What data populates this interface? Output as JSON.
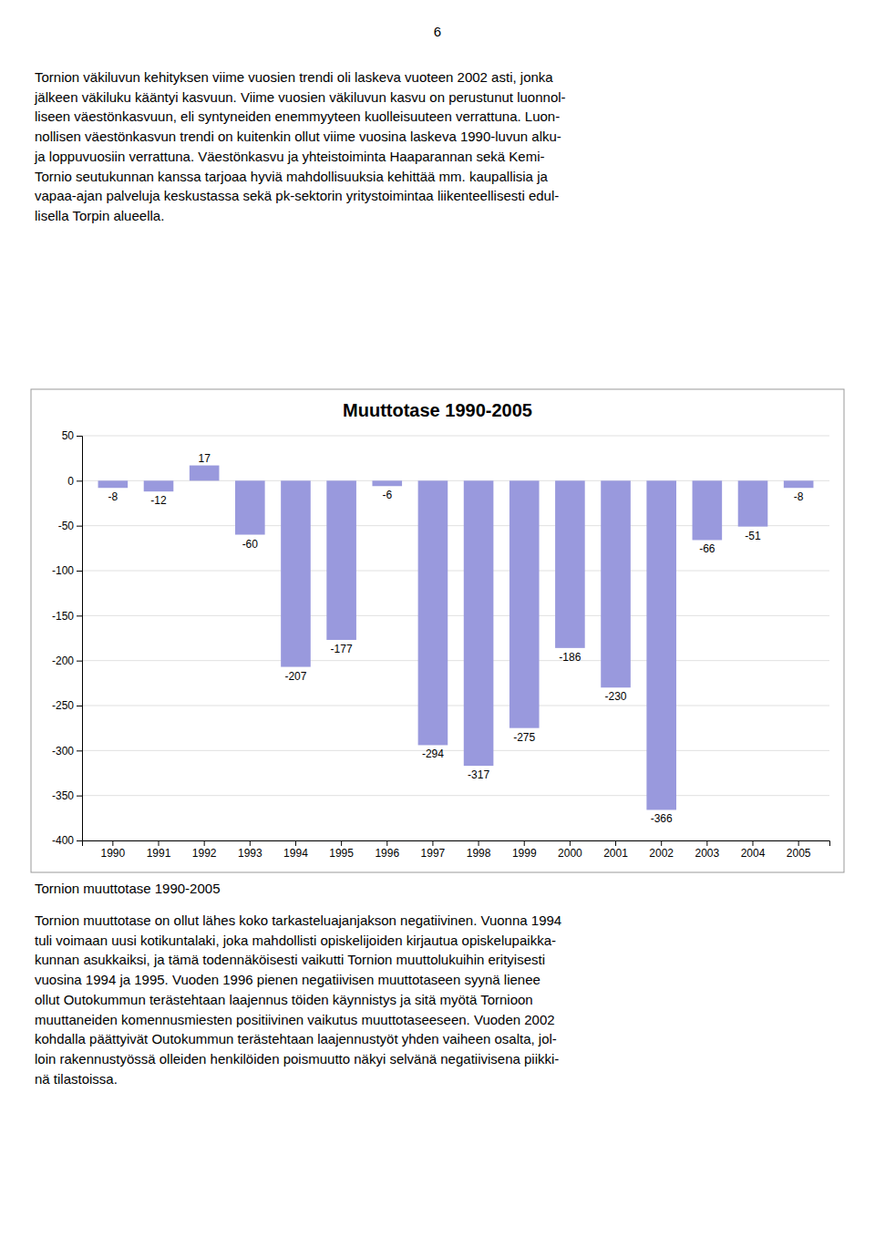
{
  "page_number": "6",
  "top_text": [
    "Tornion väkiluvun kehityksen viime vuosien trendi oli laskeva vuoteen 2002 asti, jonka",
    "jälkeen väkiluku kääntyi kasvuun. Viime vuosien väkiluvun kasvu on perustunut luonnol-",
    "liseen väestönkasvuun, eli syntyneiden enemmyyteen kuolleisuuteen verrattuna. Luon-",
    "nollisen väestönkasvun trendi on kuitenkin ollut viime vuosina laskeva 1990-luvun alku-",
    "ja loppuvuosiin verrattuna. Väestönkasvu ja yhteistoiminta Haaparannan sekä Kemi-",
    "Tornio seutukunnan kanssa tarjoaa hyviä mahdollisuuksia kehittää mm. kaupallisia ja",
    "vapaa-ajan palveluja keskustassa sekä pk-sektorin yritystoimintaa liikenteellisesti edul-",
    "lisella Torpin alueella."
  ],
  "chart_data": {
    "type": "bar",
    "title": "Muuttotase 1990-2005",
    "categories": [
      "1990",
      "1991",
      "1992",
      "1993",
      "1994",
      "1995",
      "1996",
      "1997",
      "1998",
      "1999",
      "2000",
      "2001",
      "2002",
      "2003",
      "2004",
      "2005"
    ],
    "values": [
      -8,
      -12,
      17,
      -60,
      -207,
      -177,
      -6,
      -294,
      -317,
      -275,
      -186,
      -230,
      -366,
      -66,
      -51,
      -8
    ],
    "color": "#9999dd",
    "ylim": [
      -400,
      50
    ],
    "yticks": [
      50,
      0,
      -50,
      -100,
      -150,
      -200,
      -250,
      -300,
      -350,
      -400
    ],
    "grid": true,
    "data_labels": true
  },
  "caption": "Tornion muuttotase 1990-2005",
  "bottom_text": [
    "Tornion muuttotase on ollut lähes koko tarkasteluajanjakson negatiivinen. Vuonna 1994",
    "tuli voimaan uusi kotikuntalaki, joka mahdollisti opiskelijoiden kirjautua opiskelupaikka-",
    "kunnan asukkaiksi, ja tämä todennäköisesti vaikutti Tornion muuttolukuihin erityisesti",
    "vuosina 1994 ja 1995. Vuoden 1996 pienen negatiivisen muuttotaseen syynä lienee",
    "ollut Outokummun terästehtaan laajennus töiden käynnistys ja sitä myötä Tornioon",
    "muuttaneiden komennusmiesten positiivinen vaikutus muuttotaseeseen. Vuoden 2002",
    "kohdalla päättyivät Outokummun terästehtaan laajennustyöt yhden vaiheen osalta, jol-",
    "loin rakennustyössä olleiden henkilöiden poismuutto näkyi selvänä negatiivisena piikki-",
    "nä tilastoissa."
  ]
}
